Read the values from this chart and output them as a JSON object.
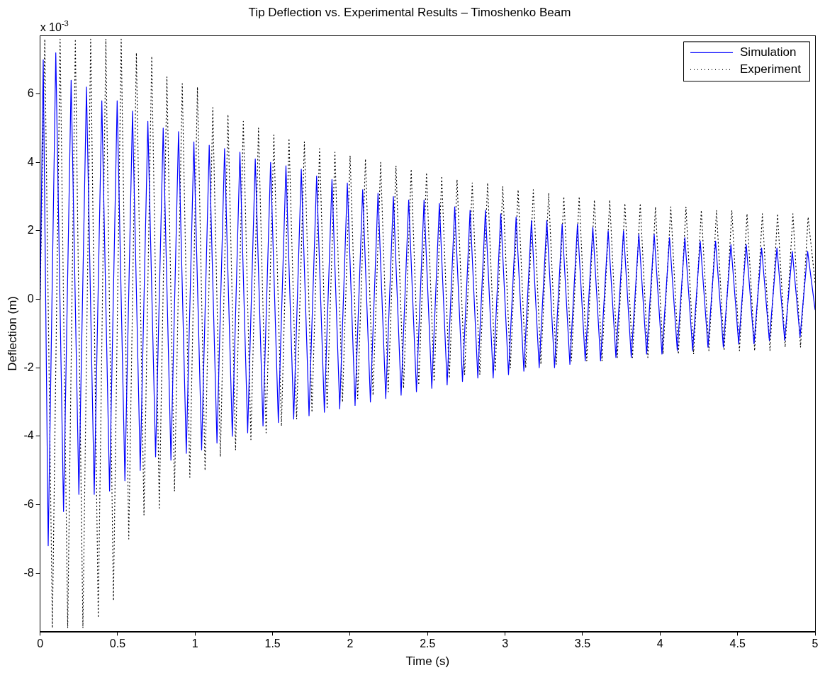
{
  "chart_data": {
    "type": "line",
    "title": "Tip Deflection vs. Experimental Results – Timoshenko Beam",
    "xlabel": "Time (s)",
    "ylabel": "Deflection (m)",
    "annotations": [
      "x 10$^{-3}$"
    ],
    "xlim": [
      0,
      5
    ],
    "xticks": [
      0,
      0.5,
      1,
      1.5,
      2,
      2.5,
      3,
      3.5,
      4,
      4.5,
      5
    ],
    "ylim": [
      -9.7,
      7.7
    ],
    "yticks": [
      -8,
      -6,
      -4,
      -2,
      0,
      2,
      4,
      6
    ],
    "grid": false,
    "legend": "top right",
    "marker": "none",
    "series": [
      {
        "name": "Simulation",
        "color": "#0000ff",
        "line_style": "solid",
        "x": [
          0,
          0.02,
          0.052,
          0.101,
          0.151,
          0.2,
          0.25,
          0.299,
          0.349,
          0.398,
          0.448,
          0.497,
          0.547,
          0.596,
          0.646,
          0.695,
          0.745,
          0.794,
          0.844,
          0.893,
          0.943,
          0.992,
          1.042,
          1.091,
          1.141,
          1.19,
          1.24,
          1.289,
          1.339,
          1.388,
          1.438,
          1.487,
          1.537,
          1.586,
          1.636,
          1.685,
          1.735,
          1.784,
          1.834,
          1.883,
          1.933,
          1.982,
          2.032,
          2.081,
          2.131,
          2.18,
          2.23,
          2.279,
          2.329,
          2.378,
          2.428,
          2.477,
          2.527,
          2.576,
          2.626,
          2.675,
          2.725,
          2.774,
          2.824,
          2.873,
          2.923,
          2.972,
          3.022,
          3.071,
          3.121,
          3.17,
          3.22,
          3.269,
          3.319,
          3.368,
          3.418,
          3.467,
          3.517,
          3.566,
          3.616,
          3.665,
          3.715,
          3.764,
          3.814,
          3.863,
          3.913,
          3.962,
          4.012,
          4.061,
          4.111,
          4.16,
          4.21,
          4.259,
          4.309,
          4.358,
          4.408,
          4.457,
          4.507,
          4.556,
          4.606,
          4.655,
          4.705,
          4.754,
          4.804,
          4.853,
          4.903,
          4.952,
          5.0
        ],
        "values": [
          0,
          7.0,
          -7.2,
          7.2,
          -6.2,
          6.4,
          -5.7,
          6.2,
          -5.7,
          5.8,
          -5.6,
          5.8,
          -5.3,
          5.5,
          -5.0,
          5.2,
          -4.6,
          5.0,
          -4.7,
          4.9,
          -4.5,
          4.6,
          -4.4,
          4.5,
          -4.2,
          4.4,
          -4.0,
          4.3,
          -3.9,
          4.1,
          -3.7,
          4.0,
          -3.6,
          3.9,
          -3.5,
          3.8,
          -3.4,
          3.6,
          -3.3,
          3.5,
          -3.2,
          3.4,
          -3.1,
          3.2,
          -3.0,
          3.1,
          -2.9,
          3.0,
          -2.8,
          2.9,
          -2.7,
          2.9,
          -2.6,
          2.8,
          -2.5,
          2.7,
          -2.4,
          2.6,
          -2.3,
          2.6,
          -2.3,
          2.5,
          -2.2,
          2.4,
          -2.1,
          2.3,
          -2.0,
          2.3,
          -2.0,
          2.2,
          -1.9,
          2.2,
          -1.8,
          2.1,
          -1.8,
          2.0,
          -1.7,
          2.0,
          -1.7,
          1.9,
          -1.6,
          1.9,
          -1.6,
          1.8,
          -1.5,
          1.8,
          -1.5,
          1.7,
          -1.4,
          1.7,
          -1.4,
          1.6,
          -1.3,
          1.6,
          -1.3,
          1.5,
          -1.2,
          1.5,
          -1.2,
          1.4,
          -1.1,
          1.4,
          -0.3
        ]
      },
      {
        "name": "Experiment",
        "color": "#000000",
        "line_style": "dotted",
        "x": [
          0,
          0.03,
          0.079,
          0.129,
          0.178,
          0.227,
          0.276,
          0.326,
          0.375,
          0.424,
          0.473,
          0.523,
          0.572,
          0.621,
          0.67,
          0.72,
          0.769,
          0.818,
          0.867,
          0.917,
          0.966,
          1.015,
          1.064,
          1.114,
          1.163,
          1.212,
          1.261,
          1.311,
          1.36,
          1.409,
          1.458,
          1.508,
          1.557,
          1.606,
          1.655,
          1.705,
          1.754,
          1.803,
          1.852,
          1.902,
          1.951,
          2.0,
          2.049,
          2.099,
          2.148,
          2.197,
          2.246,
          2.296,
          2.345,
          2.394,
          2.443,
          2.493,
          2.542,
          2.591,
          2.64,
          2.69,
          2.739,
          2.788,
          2.837,
          2.887,
          2.936,
          2.985,
          3.034,
          3.084,
          3.133,
          3.182,
          3.231,
          3.281,
          3.33,
          3.379,
          3.428,
          3.478,
          3.527,
          3.576,
          3.625,
          3.675,
          3.724,
          3.773,
          3.822,
          3.872,
          3.921,
          3.97,
          4.019,
          4.069,
          4.118,
          4.167,
          4.216,
          4.266,
          4.315,
          4.364,
          4.413,
          4.463,
          4.512,
          4.561,
          4.61,
          4.66,
          4.709,
          4.758,
          4.807,
          4.857,
          4.906,
          4.955,
          5.0
        ],
        "values": [
          0,
          7.6,
          -9.6,
          7.6,
          -9.6,
          7.6,
          -9.6,
          7.6,
          -9.3,
          7.6,
          -8.8,
          7.6,
          -7.0,
          7.2,
          -6.3,
          7.1,
          -6.1,
          6.5,
          -5.6,
          6.3,
          -5.2,
          6.2,
          -5.0,
          5.6,
          -4.6,
          5.4,
          -4.4,
          5.2,
          -4.1,
          5.0,
          -3.9,
          4.8,
          -3.7,
          4.7,
          -3.5,
          4.6,
          -3.3,
          4.4,
          -3.2,
          4.3,
          -3.0,
          4.2,
          -2.9,
          4.1,
          -2.8,
          4.0,
          -2.7,
          3.9,
          -2.6,
          3.8,
          -2.5,
          3.7,
          -2.4,
          3.6,
          -2.3,
          3.5,
          -2.2,
          3.4,
          -2.2,
          3.4,
          -2.1,
          3.3,
          -2.0,
          3.2,
          -2.0,
          3.2,
          -1.9,
          3.1,
          -1.9,
          3.0,
          -1.8,
          3.0,
          -1.8,
          2.9,
          -1.8,
          2.9,
          -1.7,
          2.8,
          -1.7,
          2.8,
          -1.7,
          2.7,
          -1.6,
          2.7,
          -1.6,
          2.7,
          -1.6,
          2.6,
          -1.5,
          2.6,
          -1.5,
          2.6,
          -1.5,
          2.5,
          -1.5,
          2.5,
          -1.5,
          2.5,
          -1.4,
          2.5,
          -1.4,
          2.4,
          0.5
        ]
      }
    ]
  }
}
